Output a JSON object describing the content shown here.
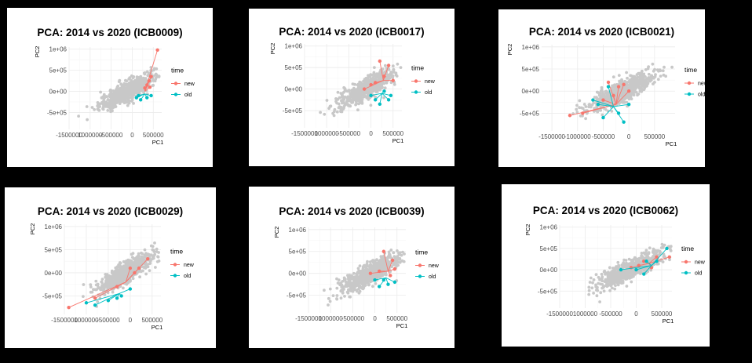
{
  "legend_title": "time",
  "legend_items": [
    "new",
    "old"
  ],
  "colors": {
    "new": "#F8766D",
    "old": "#00BFC4",
    "background_points": "#c8c8c8",
    "grid": "#ebebeb"
  },
  "chart_data": [
    {
      "type": "scatter",
      "title": "PCA: 2014 vs 2020 (ICB0009)",
      "xlabel": "PC1",
      "ylabel": "PC2",
      "xticks": [
        "-1500000",
        "1000000",
        "-500000",
        "0",
        "500000"
      ],
      "yticks": [
        "1e+06",
        "5e+05",
        "0e+00",
        "-5e+05"
      ],
      "xlim": [
        -1500000,
        700000
      ],
      "ylim": [
        -900000,
        1050000
      ],
      "grid": true,
      "legend": "right",
      "series": [
        {
          "name": "new",
          "lines_from": [
            300000,
            0
          ],
          "points": [
            [
              600000,
              980000
            ],
            [
              450000,
              350000
            ],
            [
              400000,
              250000
            ],
            [
              350000,
              150000
            ],
            [
              420000,
              100000
            ],
            [
              300000,
              80000
            ]
          ]
        },
        {
          "name": "old",
          "lines_from": [
            300000,
            -60000
          ],
          "points": [
            [
              150000,
              -100000
            ],
            [
              100000,
              -150000
            ],
            [
              200000,
              -200000
            ],
            [
              450000,
              -100000
            ],
            [
              350000,
              -150000
            ]
          ]
        }
      ]
    },
    {
      "type": "scatter",
      "title": "PCA: 2014 vs 2020 (ICB0017)",
      "xlabel": "PC1",
      "ylabel": "PC2",
      "xticks": [
        "-1500000",
        "1000000",
        "-500000",
        "0",
        "500000"
      ],
      "yticks": [
        "1e+06",
        "5e+05",
        "0e+00",
        "-5e+05"
      ],
      "xlim": [
        -1500000,
        700000
      ],
      "ylim": [
        -900000,
        1050000
      ],
      "grid": true,
      "legend": "right",
      "series": [
        {
          "name": "new",
          "lines_from": [
            280000,
            200000
          ],
          "points": [
            [
              -150000,
              0
            ],
            [
              0,
              100000
            ],
            [
              200000,
              650000
            ],
            [
              400000,
              550000
            ],
            [
              300000,
              300000
            ],
            [
              500000,
              200000
            ],
            [
              100000,
              150000
            ]
          ]
        },
        {
          "name": "old",
          "lines_from": [
            250000,
            -100000
          ],
          "points": [
            [
              0,
              -150000
            ],
            [
              100000,
              -250000
            ],
            [
              400000,
              -250000
            ],
            [
              200000,
              -350000
            ],
            [
              450000,
              -150000
            ],
            [
              300000,
              -50000
            ]
          ]
        }
      ]
    },
    {
      "type": "scatter",
      "title": "PCA: 2014 vs 2020 (ICB0021)",
      "xlabel": "PC1",
      "ylabel": "PC2",
      "xticks": [
        "-1500000",
        "-1000000",
        "-500000",
        "0",
        "500000"
      ],
      "yticks": [
        "1e+06",
        "5e+05",
        "0e+00",
        "-5e+05"
      ],
      "xlim": [
        -1700000,
        900000
      ],
      "ylim": [
        -900000,
        1050000
      ],
      "grid": true,
      "legend": "right",
      "series": [
        {
          "name": "new",
          "lines_from": [
            -250000,
            -300000
          ],
          "points": [
            [
              -1150000,
              -550000
            ],
            [
              -900000,
              -500000
            ],
            [
              -400000,
              200000
            ],
            [
              -200000,
              100000
            ],
            [
              0,
              0
            ],
            [
              -100000,
              150000
            ],
            [
              -300000,
              -100000
            ],
            [
              -500000,
              -200000
            ]
          ]
        },
        {
          "name": "old",
          "lines_from": [
            -300000,
            -350000
          ],
          "points": [
            [
              -700000,
              -200000
            ],
            [
              -400000,
              100000
            ],
            [
              -100000,
              -700000
            ],
            [
              -500000,
              -600000
            ],
            [
              -200000,
              -500000
            ],
            [
              0,
              -300000
            ],
            [
              -600000,
              -300000
            ]
          ]
        }
      ]
    },
    {
      "type": "scatter",
      "title": "PCA: 2014 vs 2020 (ICB0029)",
      "xlabel": "PC1",
      "ylabel": "PC2",
      "xticks": [
        "-1500000",
        "1000000",
        "-500000",
        "0",
        "500000"
      ],
      "yticks": [
        "1e+06",
        "5e+05",
        "0e+00",
        "-5e+05"
      ],
      "xlim": [
        -1500000,
        700000
      ],
      "ylim": [
        -900000,
        1050000
      ],
      "grid": true,
      "legend": "right",
      "series": [
        {
          "name": "new",
          "lines_from": [
            -100000,
            -200000
          ],
          "points": [
            [
              -1400000,
              -750000
            ],
            [
              -800000,
              -550000
            ],
            [
              400000,
              300000
            ],
            [
              200000,
              100000
            ],
            [
              0,
              100000
            ],
            [
              -300000,
              -300000
            ],
            [
              100000,
              0
            ]
          ]
        },
        {
          "name": "old",
          "lines_from": [
            -250000,
            -450000
          ],
          "points": [
            [
              -1000000,
              -650000
            ],
            [
              -800000,
              -700000
            ],
            [
              -500000,
              -600000
            ],
            [
              -300000,
              -550000
            ],
            [
              0,
              -350000
            ],
            [
              -200000,
              -500000
            ]
          ]
        }
      ]
    },
    {
      "type": "scatter",
      "title": "PCA: 2014 vs 2020 (ICB0039)",
      "xlabel": "PC1",
      "ylabel": "PC2",
      "xticks": [
        "-1500000",
        "1000000",
        "-500000",
        "0",
        "500000"
      ],
      "yticks": [
        "1e+06",
        "5e+05",
        "0e+00",
        "-5e+05"
      ],
      "xlim": [
        -1500000,
        700000
      ],
      "ylim": [
        -900000,
        1050000
      ],
      "grid": true,
      "legend": "right",
      "series": [
        {
          "name": "new",
          "lines_from": [
            300000,
            50000
          ],
          "points": [
            [
              -100000,
              0
            ],
            [
              100000,
              50000
            ],
            [
              200000,
              500000
            ],
            [
              400000,
              300000
            ],
            [
              450000,
              100000
            ],
            [
              350000,
              -50000
            ]
          ]
        },
        {
          "name": "old",
          "lines_from": [
            250000,
            -100000
          ],
          "points": [
            [
              0,
              -150000
            ],
            [
              100000,
              -300000
            ],
            [
              300000,
              -250000
            ],
            [
              450000,
              -200000
            ],
            [
              200000,
              -150000
            ]
          ]
        }
      ]
    },
    {
      "type": "scatter",
      "title": "PCA: 2014 vs 2020 (ICB0062)",
      "xlabel": "PC1",
      "ylabel": "PC2",
      "xticks": [
        "-1500000",
        "1000000",
        "-500000",
        "0",
        "500000"
      ],
      "yticks": [
        "1e+06",
        "5e+05",
        "0e+00",
        "-5e+05"
      ],
      "xlim": [
        -1500000,
        700000
      ],
      "ylim": [
        -900000,
        1050000
      ],
      "grid": true,
      "legend": "right",
      "series": [
        {
          "name": "new",
          "lines_from": [
            250000,
            150000
          ],
          "points": [
            [
              -100000,
              50000
            ],
            [
              50000,
              100000
            ],
            [
              400000,
              300000
            ],
            [
              650000,
              300000
            ],
            [
              300000,
              50000
            ],
            [
              150000,
              200000
            ]
          ]
        },
        {
          "name": "old",
          "lines_from": [
            300000,
            100000
          ],
          "points": [
            [
              -300000,
              0
            ],
            [
              0,
              0
            ],
            [
              200000,
              200000
            ],
            [
              600000,
              500000
            ],
            [
              400000,
              200000
            ],
            [
              150000,
              -100000
            ]
          ]
        }
      ]
    }
  ]
}
